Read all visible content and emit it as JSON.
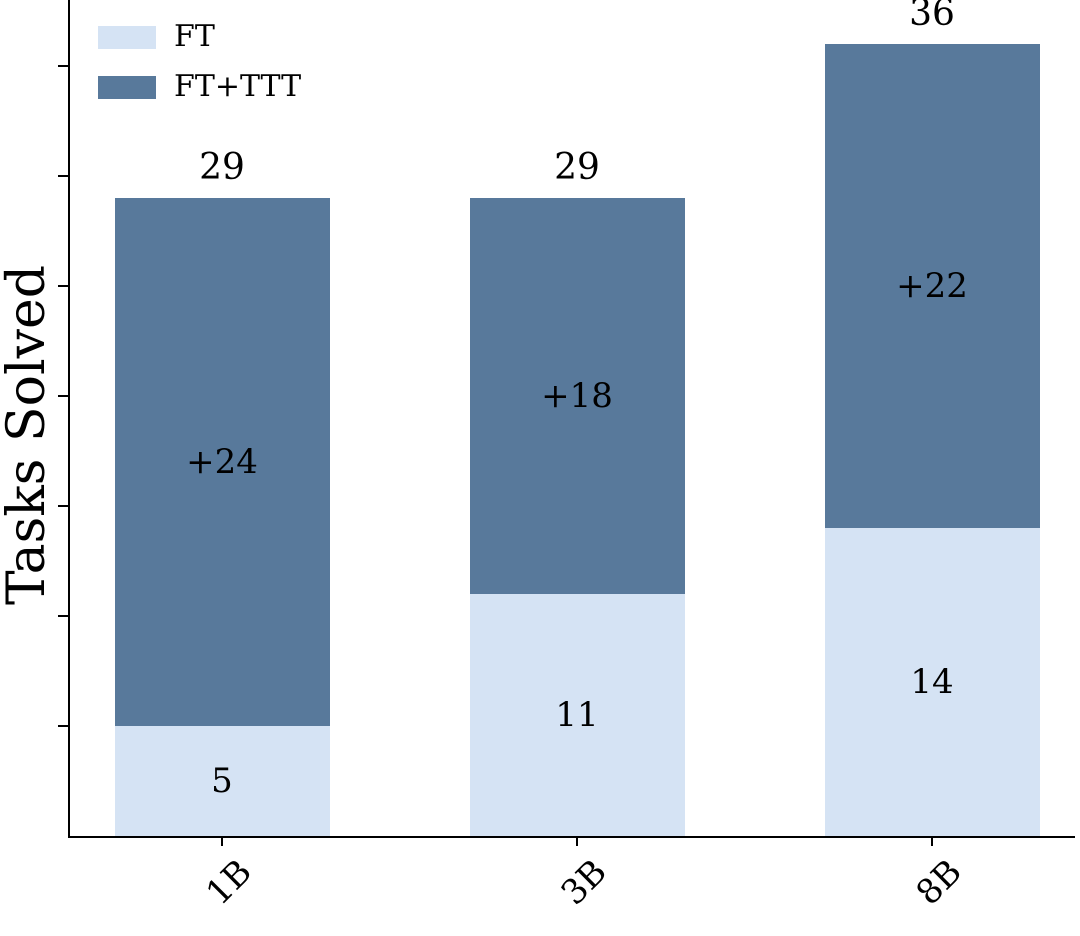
{
  "chart_data": {
    "type": "bar",
    "stacked": true,
    "title": "",
    "ylabel": "Tasks Solved",
    "xlabel": "",
    "categories": [
      "1B",
      "3B",
      "8B"
    ],
    "series": [
      {
        "name": "FT",
        "color": "#d5e3f4",
        "values": [
          5,
          11,
          14
        ]
      },
      {
        "name": "FT+TTT",
        "color": "#58799b",
        "values": [
          24,
          18,
          22
        ]
      }
    ],
    "totals": [
      29,
      29,
      36
    ],
    "bar_labels": {
      "base": [
        "5",
        "11",
        "14"
      ],
      "increment": [
        "+24",
        "+18",
        "+22"
      ],
      "total": [
        "29",
        "29",
        "36"
      ]
    },
    "ylim": [
      0,
      38
    ],
    "y_tick_step": 5,
    "grid": false,
    "legend_position": "upper-left",
    "colors": {
      "axis": "#000000",
      "text": "#000000",
      "background": "#ffffff"
    }
  }
}
